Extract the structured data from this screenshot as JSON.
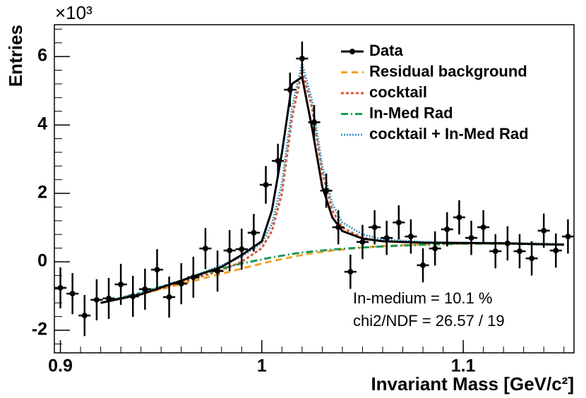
{
  "chart_data": {
    "type": "line",
    "multiplier": "×10³",
    "y_label": "Entries",
    "x_label": "Invariant Mass [GeV/c²]",
    "xlim": [
      0.897,
      1.155
    ],
    "ylim": [
      -2.66,
      6.93
    ],
    "xticks": [
      0.9,
      1,
      1.1
    ],
    "yticks": [
      -2,
      0,
      2,
      4,
      6
    ],
    "legend": "top-right",
    "annotations": [
      "In-medium = 10.1 %",
      "chi2/NDF = 26.57 / 19"
    ],
    "curve_x": [
      0.92,
      0.94,
      0.96,
      0.98,
      0.99,
      1.0,
      1.005,
      1.01,
      1.015,
      1.02,
      1.025,
      1.03,
      1.035,
      1.04,
      1.05,
      1.06,
      1.08,
      1.1,
      1.12,
      1.15
    ],
    "series": [
      {
        "name": "Data",
        "color": "#000000",
        "x": [
          0.9,
          0.906,
          0.912,
          0.918,
          0.924,
          0.93,
          0.936,
          0.942,
          0.948,
          0.954,
          0.96,
          0.966,
          0.972,
          0.978,
          0.984,
          0.99,
          0.996,
          1.002,
          1.008,
          1.014,
          1.02,
          1.026,
          1.032,
          1.038,
          1.044,
          1.05,
          1.056,
          1.062,
          1.068,
          1.074,
          1.08,
          1.086,
          1.092,
          1.098,
          1.104,
          1.11,
          1.116,
          1.122,
          1.128,
          1.134,
          1.14,
          1.146,
          1.152
        ],
        "values": [
          -0.76,
          -0.93,
          -1.57,
          -1.11,
          -1.07,
          -0.66,
          -1.01,
          -0.8,
          -0.23,
          -1.03,
          -0.64,
          -0.45,
          0.39,
          -0.27,
          0.33,
          0.37,
          0.85,
          2.25,
          2.95,
          5.03,
          5.94,
          4.08,
          2.08,
          1.01,
          -0.29,
          0.58,
          1.01,
          0.7,
          1.15,
          0.74,
          -0.1,
          0.39,
          0.95,
          1.3,
          0.7,
          1.01,
          0.31,
          0.54,
          0.31,
          0.1,
          0.91,
          0.33,
          0.74
        ],
        "errors": [
          0.6,
          0.6,
          0.6,
          0.6,
          0.6,
          0.6,
          0.6,
          0.6,
          0.6,
          0.6,
          0.6,
          0.6,
          0.6,
          0.6,
          0.6,
          0.6,
          0.55,
          0.55,
          0.5,
          0.5,
          0.5,
          0.5,
          0.5,
          0.5,
          0.5,
          0.5,
          0.5,
          0.5,
          0.5,
          0.5,
          0.5,
          0.5,
          0.5,
          0.5,
          0.5,
          0.5,
          0.5,
          0.5,
          0.5,
          0.5,
          0.5,
          0.5,
          0.5
        ],
        "fit_values": [
          -1.2,
          -0.95,
          -0.55,
          -0.15,
          0.2,
          0.6,
          1.5,
          3.2,
          5.2,
          5.4,
          3.9,
          2.2,
          1.3,
          0.9,
          0.68,
          0.6,
          0.56,
          0.55,
          0.54,
          0.5
        ]
      },
      {
        "name": "Residual background",
        "color": "#f5a11e",
        "dash": "9,6",
        "values": [
          -1.2,
          -0.95,
          -0.65,
          -0.35,
          -0.2,
          -0.05,
          0.02,
          0.08,
          0.14,
          0.2,
          0.25,
          0.29,
          0.33,
          0.36,
          0.42,
          0.46,
          0.51,
          0.53,
          0.53,
          0.5
        ]
      },
      {
        "name": "cocktail",
        "color": "#e5542b",
        "dash": "4,3",
        "values": [
          -1.2,
          -0.95,
          -0.6,
          -0.25,
          0.0,
          0.4,
          0.9,
          2.0,
          4.2,
          5.6,
          4.5,
          2.6,
          1.5,
          1.0,
          0.7,
          0.6,
          0.56,
          0.55,
          0.54,
          0.5
        ]
      },
      {
        "name": "In-Med Rad",
        "color": "#199a57",
        "dash": "10,4,2,4",
        "values": [
          -1.2,
          -0.9,
          -0.55,
          -0.2,
          -0.05,
          0.07,
          0.13,
          0.18,
          0.23,
          0.27,
          0.3,
          0.33,
          0.36,
          0.38,
          0.42,
          0.45,
          0.5,
          0.53,
          0.53,
          0.5
        ]
      },
      {
        "name": "cocktail + In-Med Rad",
        "color": "#3a9fc9",
        "dash": "2,2",
        "values": [
          -1.2,
          -0.9,
          -0.55,
          -0.1,
          0.15,
          0.55,
          1.1,
          2.3,
          4.5,
          5.8,
          4.7,
          2.8,
          1.7,
          1.15,
          0.8,
          0.65,
          0.58,
          0.56,
          0.55,
          0.52
        ]
      }
    ]
  }
}
